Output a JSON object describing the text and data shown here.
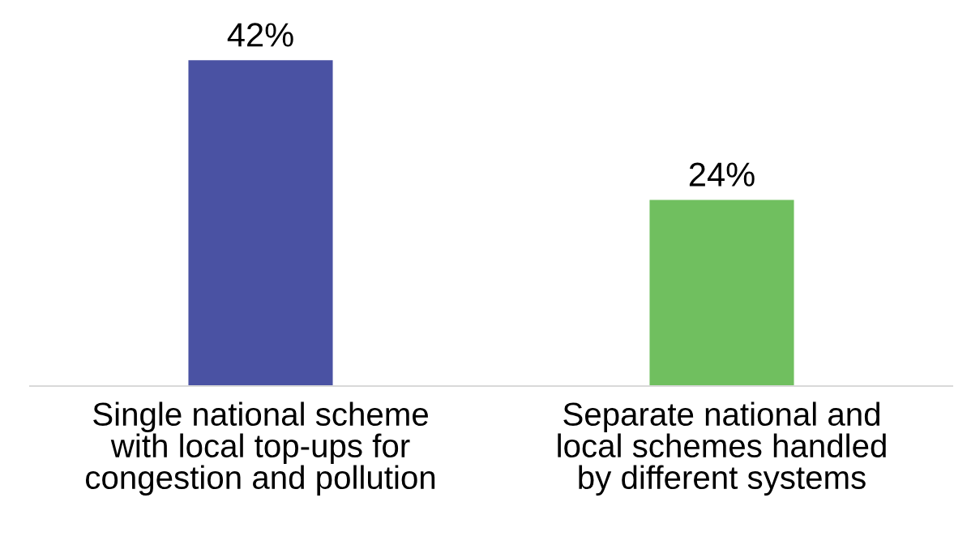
{
  "chart_data": {
    "type": "bar",
    "categories": [
      "Single national scheme\nwith local top-ups for\ncongestion and pollution",
      "Separate national and\nlocal schemes handled\nby different systems"
    ],
    "values": [
      42,
      24
    ],
    "colors": [
      "#4a52a3",
      "#70bf5f"
    ],
    "value_labels": [
      "42%",
      "24%"
    ]
  }
}
